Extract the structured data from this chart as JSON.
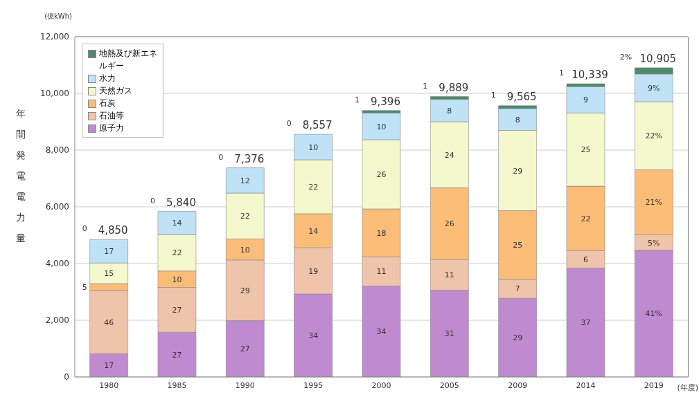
{
  "chart_data": {
    "type": "bar",
    "stacked": true,
    "ylabel": "年間発電電力量",
    "xlabel": "(年度)",
    "annotations": [
      "(億kWh)",
      "17",
      "46",
      "5",
      "15",
      "17",
      "0",
      "27",
      "27",
      "10",
      "22",
      "14",
      "0",
      "27",
      "29",
      "10",
      "22",
      "12",
      "0",
      "34",
      "19",
      "14",
      "22",
      "10",
      "0",
      "34",
      "11",
      "18",
      "26",
      "10",
      "1",
      "31",
      "11",
      "26",
      "24",
      "8",
      "1",
      "29",
      "7",
      "25",
      "29",
      "8",
      "1",
      "37",
      "6",
      "22",
      "25",
      "9",
      "1",
      "41%",
      "5%",
      "21%",
      "22%",
      "9%",
      "2%"
    ],
    "categories": [
      "1980",
      "1985",
      "1990",
      "1995",
      "2000",
      "2005",
      "2009",
      "2014",
      "2019"
    ],
    "ylim": [
      0,
      12000
    ],
    "yticks": [
      0,
      {
        "value": 2000,
        "label": "2,000"
      },
      {
        "value": 4000,
        "label": "4,000"
      },
      {
        "value": 6000,
        "label": "6,000"
      },
      {
        "value": 8000,
        "label": "8,000"
      },
      {
        "value": 10000,
        "label": "10,000"
      },
      {
        "value": 12000,
        "label": "12,000"
      }
    ],
    "grid": "y",
    "legend": "top left",
    "series": [
      {
        "name": "原子力",
        "color": "#c08ad0",
        "values": [
          820,
          1580,
          1986,
          2927,
          3206,
          3059,
          2775,
          3839,
          4465
        ]
      },
      {
        "name": "石油等",
        "color": "#f0c3ab",
        "values": [
          2230,
          1580,
          2140,
          1630,
          1030,
          1090,
          670,
          620,
          550
        ]
      },
      {
        "name": "石炭",
        "color": "#fbbd78",
        "values": [
          240,
          580,
          740,
          1200,
          1690,
          2520,
          2420,
          2270,
          2290
        ]
      },
      {
        "name": "天然ガス",
        "color": "#f5f8cc",
        "values": [
          730,
          1280,
          1620,
          1900,
          2440,
          2330,
          2830,
          2580,
          2400
        ]
      },
      {
        "name": "水力",
        "color": "#bfe2f6",
        "values": [
          830,
          820,
          890,
          900,
          940,
          790,
          770,
          930,
          980
        ]
      },
      {
        "name": "地熱及び新エネルギー",
        "color": "#4e8a6c",
        "values": [
          0,
          0,
          0,
          0,
          90,
          100,
          100,
          100,
          220
        ]
      }
    ],
    "totals": [
      "4,850",
      "5,840",
      "7,376",
      "8,557",
      "9,396",
      "9,889",
      "9,565",
      "10,339",
      "10,905"
    ]
  }
}
